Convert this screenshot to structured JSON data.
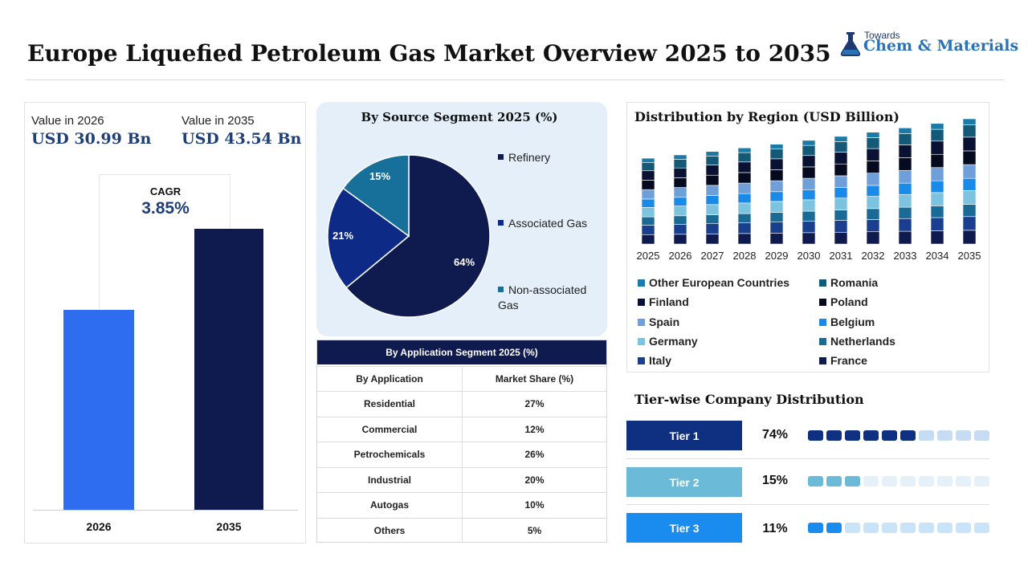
{
  "header": {
    "title": "Europe Liquefied Petroleum Gas Market Overview 2025 to 2035",
    "logo_small": "Towards",
    "logo_big": "Chem & Materials"
  },
  "values_panel": {
    "left_label": "Value in 2026",
    "left_value": "USD 30.99 Bn",
    "right_label": "Value in 2035",
    "right_value": "USD 43.54 Bn",
    "cagr_label": "CAGR",
    "cagr_value": "3.85%"
  },
  "colors": {
    "navy": "#0f1a4e",
    "blue": "#2f6df0",
    "teal": "#17709a",
    "tier1": "#0f2f80",
    "tier2": "#6bbad8",
    "tier3": "#1a8cef"
  },
  "chart_data": [
    {
      "type": "bar",
      "categories": [
        "2026",
        "2035"
      ],
      "values": [
        30.99,
        43.54
      ],
      "ylim": [
        0,
        45
      ]
    },
    {
      "type": "pie",
      "title": "By Source Segment 2025 (%)",
      "labels": [
        "Refinery",
        "Associated Gas",
        "Non-associated Gas"
      ],
      "values": [
        64,
        21,
        15
      ],
      "value_labels": [
        "64%",
        "21%",
        "15%"
      ],
      "colors": [
        "#0f1a4e",
        "#0d2b86",
        "#17709a"
      ]
    },
    {
      "type": "table",
      "title": "By Application Segment 2025 (%)",
      "columns": [
        "By Application",
        "Market Share (%)"
      ],
      "rows": [
        [
          "Residential",
          "27%"
        ],
        [
          "Commercial",
          "12%"
        ],
        [
          "Petrochemicals",
          "26%"
        ],
        [
          "Industrial",
          "20%"
        ],
        [
          "Autogas",
          "10%"
        ],
        [
          "Others",
          "5%"
        ]
      ]
    },
    {
      "type": "bar",
      "stacked": true,
      "title": "Distribution by Region (USD Billion)",
      "categories": [
        "2025",
        "2026",
        "2027",
        "2028",
        "2029",
        "2030",
        "2031",
        "2032",
        "2033",
        "2034",
        "2035"
      ],
      "totals": [
        29.84,
        30.99,
        32.18,
        33.42,
        34.71,
        36.05,
        37.44,
        38.88,
        40.38,
        41.93,
        43.54
      ],
      "series_shares": {
        "France": 0.09,
        "Italy": 0.09,
        "Netherlands": 0.08,
        "Germany": 0.09,
        "Belgium": 0.08,
        "Spain": 0.09,
        "Poland": 0.09,
        "Finland": 0.09,
        "Romania": 0.08,
        "Other European Countries": 0.04
      },
      "legend": [
        {
          "name": "Other European Countries",
          "color": "#1a7ba8"
        },
        {
          "name": "Romania",
          "color": "#145a78"
        },
        {
          "name": "Finland",
          "color": "#0a1233"
        },
        {
          "name": "Poland",
          "color": "#050a1f"
        },
        {
          "name": "Spain",
          "color": "#6f9fd8"
        },
        {
          "name": "Belgium",
          "color": "#1a8ae8"
        },
        {
          "name": "Germany",
          "color": "#7cc3e0"
        },
        {
          "name": "Netherlands",
          "color": "#1a6a96"
        },
        {
          "name": "Italy",
          "color": "#1a3f8e"
        },
        {
          "name": "France",
          "color": "#0f1a4e"
        }
      ],
      "stack_order": [
        "France",
        "Italy",
        "Netherlands",
        "Germany",
        "Belgium",
        "Spain",
        "Poland",
        "Finland",
        "Romania",
        "Other European Countries"
      ],
      "ylim": [
        0,
        45
      ]
    },
    {
      "type": "bar",
      "title": "Tier-wise Company Distribution",
      "categories": [
        "Tier 1",
        "Tier 2",
        "Tier 3"
      ],
      "values": [
        74,
        15,
        11
      ],
      "value_labels": [
        "74%",
        "15%",
        "11%"
      ],
      "dots_total": 10,
      "dots_filled": [
        6,
        3,
        2
      ]
    }
  ]
}
